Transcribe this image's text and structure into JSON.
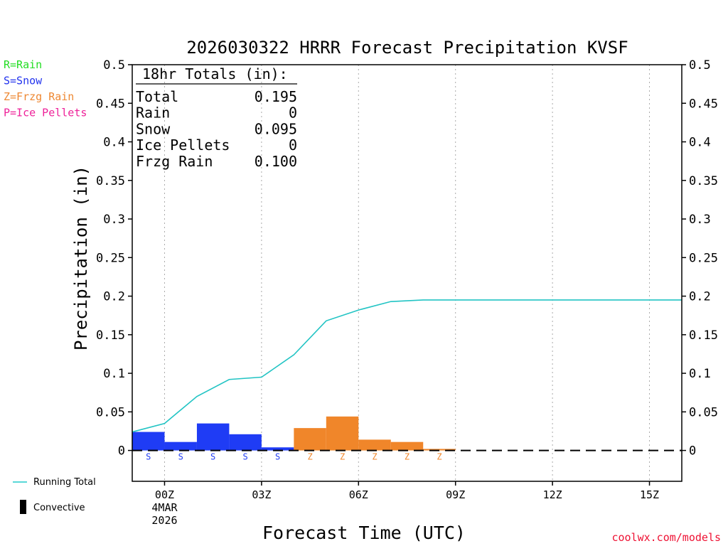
{
  "chart_data": {
    "type": "bar",
    "title": "2026030322 HRRR Forecast Precipitation KVSF",
    "xlabel": "Forecast Time (UTC)",
    "ylabel": "Precipitation (in)",
    "ylim": [
      -0.04,
      0.5
    ],
    "xlim": [
      -1.0,
      16.0
    ],
    "y_ticks": [
      0,
      0.05,
      0.1,
      0.15,
      0.2,
      0.25,
      0.3,
      0.35,
      0.4,
      0.45,
      0.5
    ],
    "y_tick_labels": [
      "0",
      "0.05",
      "0.1",
      "0.15",
      "0.2",
      "0.25",
      "0.3",
      "0.35",
      "0.4",
      "0.45",
      "0.5"
    ],
    "x_ticks": [
      {
        "hour": 0,
        "label": "00Z",
        "sub1": "4MAR",
        "sub2": "2026"
      },
      {
        "hour": 3,
        "label": "03Z",
        "sub1": "",
        "sub2": ""
      },
      {
        "hour": 6,
        "label": "06Z",
        "sub1": "",
        "sub2": ""
      },
      {
        "hour": 9,
        "label": "09Z",
        "sub1": "",
        "sub2": ""
      },
      {
        "hour": 12,
        "label": "12Z",
        "sub1": "",
        "sub2": ""
      },
      {
        "hour": 15,
        "label": "15Z",
        "sub1": "",
        "sub2": ""
      }
    ],
    "bars": [
      {
        "hour": -0.5,
        "value": 0.024,
        "ptype": "S"
      },
      {
        "hour": 0.5,
        "value": 0.011,
        "ptype": "S"
      },
      {
        "hour": 1.5,
        "value": 0.035,
        "ptype": "S"
      },
      {
        "hour": 2.5,
        "value": 0.021,
        "ptype": "S"
      },
      {
        "hour": 3.5,
        "value": 0.004,
        "ptype": "S"
      },
      {
        "hour": 4.5,
        "value": 0.029,
        "ptype": "Z"
      },
      {
        "hour": 5.5,
        "value": 0.044,
        "ptype": "Z"
      },
      {
        "hour": 6.5,
        "value": 0.014,
        "ptype": "Z"
      },
      {
        "hour": 7.5,
        "value": 0.011,
        "ptype": "Z"
      },
      {
        "hour": 8.5,
        "value": 0.002,
        "ptype": "Z"
      }
    ],
    "running_total": {
      "name": "Running Total",
      "x": [
        -1,
        0,
        1,
        2,
        3,
        4,
        5,
        6,
        7,
        8,
        9,
        10,
        11,
        12,
        13,
        14,
        15,
        16
      ],
      "y": [
        0.024,
        0.035,
        0.07,
        0.092,
        0.095,
        0.124,
        0.168,
        0.182,
        0.193,
        0.195,
        0.195,
        0.195,
        0.195,
        0.195,
        0.195,
        0.195,
        0.195,
        0.195
      ]
    },
    "totals_box": {
      "header": "18hr Totals (in):",
      "rows": [
        {
          "label": "Total",
          "value": "0.195"
        },
        {
          "label": "Rain",
          "value": "0"
        },
        {
          "label": "Snow",
          "value": "0.095"
        },
        {
          "label": "Ice Pellets",
          "value": "0"
        },
        {
          "label": "Frzg Rain",
          "value": "0.100"
        }
      ]
    },
    "type_legend": [
      {
        "code": "R",
        "text": "R=Rain",
        "color": "#22dd22"
      },
      {
        "code": "S",
        "text": "S=Snow",
        "color": "#2233ee"
      },
      {
        "code": "Z",
        "text": "Z=Frzg Rain",
        "color": "#ee8833"
      },
      {
        "code": "P",
        "text": "P=Ice Pellets",
        "color": "#ee2299"
      }
    ],
    "series_legend": [
      {
        "name": "Running Total",
        "color": "#22cccc",
        "kind": "line"
      },
      {
        "name": "Convective",
        "color": "#000000",
        "kind": "bar"
      }
    ],
    "colors": {
      "S": "#1f3cf5",
      "Z": "#f0862a",
      "R": "#22dd22",
      "P": "#ee2299",
      "running_total": "#22c4c4",
      "convective": "#000000",
      "grid": "#aaaaaa"
    },
    "credit": "coolwx.com/models"
  }
}
